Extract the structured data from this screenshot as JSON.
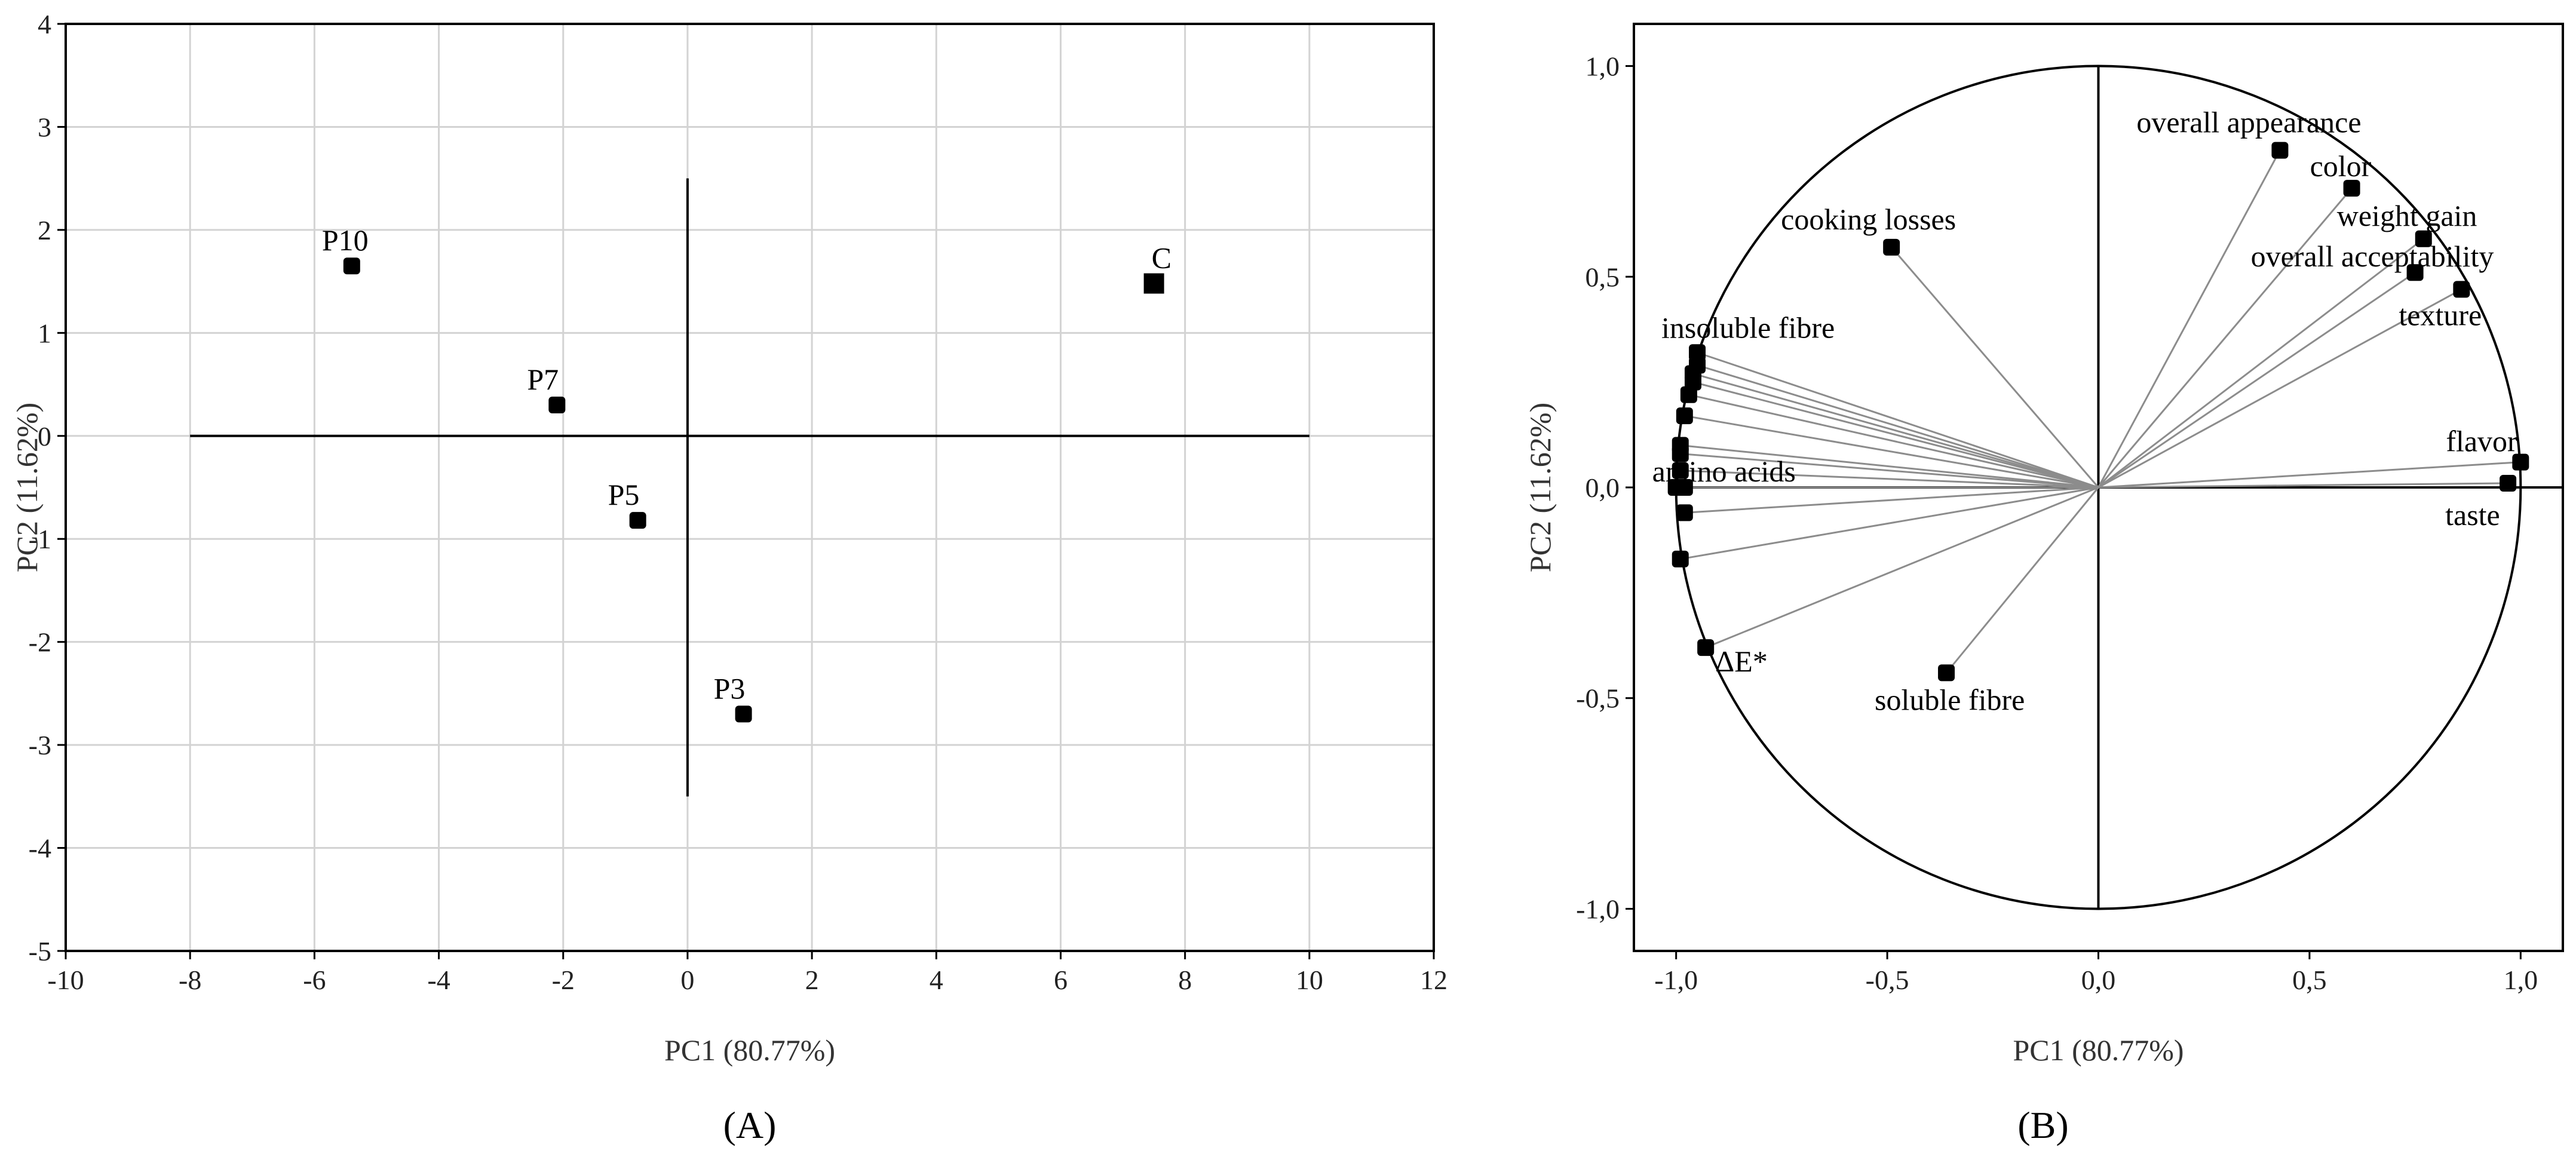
{
  "chart_data": [
    {
      "type": "scatter",
      "panel_label": "(A)",
      "xlabel": "PC1 (80.77%)",
      "ylabel": "PC2 (11.62%)",
      "xlim": [
        -10,
        12
      ],
      "ylim": [
        -5,
        4
      ],
      "xticks": [
        -10,
        -8,
        -6,
        -4,
        -2,
        0,
        2,
        4,
        6,
        8,
        10,
        12
      ],
      "yticks": [
        -5,
        -4,
        -3,
        -2,
        -1,
        0,
        1,
        2,
        3,
        4
      ],
      "grid": true,
      "reference_lines": {
        "horizontal": {
          "y": 0,
          "x_from": -8,
          "x_to": 10
        },
        "vertical": {
          "x": 0,
          "y_from": -3.5,
          "y_to": 2.5
        }
      },
      "points": [
        {
          "label": "P10",
          "x": -5.4,
          "y": 1.65,
          "marker": "square-rounded"
        },
        {
          "label": "P7",
          "x": -2.1,
          "y": 0.3,
          "marker": "square-rounded"
        },
        {
          "label": "P5",
          "x": -0.8,
          "y": -0.82,
          "marker": "square-rounded"
        },
        {
          "label": "P3",
          "x": 0.9,
          "y": -2.7,
          "marker": "square-rounded"
        },
        {
          "label": "C",
          "x": 7.5,
          "y": 1.48,
          "marker": "square"
        }
      ]
    },
    {
      "type": "scatter",
      "panel_label": "(B)",
      "xlabel": "PC1 (80.77%)",
      "ylabel": "PC2  (11.62%)",
      "xlim": [
        -1.1,
        1.1
      ],
      "ylim": [
        -1.1,
        1.1
      ],
      "xticks": [
        "-1,0",
        "-0,5",
        "0,0",
        "0,5",
        "1,0"
      ],
      "yticks": [
        "-1,0",
        "-0,5",
        "0,0",
        "0,5",
        "1,0"
      ],
      "grid": false,
      "unit_circle": true,
      "vectors": [
        {
          "label": "overall appearance",
          "x": 0.43,
          "y": 0.8
        },
        {
          "label": "color",
          "x": 0.6,
          "y": 0.71
        },
        {
          "label": "weight gain",
          "x": 0.77,
          "y": 0.59
        },
        {
          "label": "overall acceptability",
          "x": 0.75,
          "y": 0.51
        },
        {
          "label": "texture",
          "x": 0.86,
          "y": 0.47
        },
        {
          "label": "flavor",
          "x": 1.0,
          "y": 0.06
        },
        {
          "label": "taste",
          "x": 0.97,
          "y": 0.01
        },
        {
          "label": "cooking losses",
          "x": -0.49,
          "y": 0.57
        },
        {
          "label": "soluble fibre",
          "x": -0.36,
          "y": -0.44
        },
        {
          "label": "ΔE*",
          "x": -0.93,
          "y": -0.38
        },
        {
          "label": "insoluble fibre",
          "x": -0.95,
          "y": 0.32
        },
        {
          "label": "",
          "x": -0.95,
          "y": 0.29
        },
        {
          "label": "",
          "x": -0.96,
          "y": 0.27
        },
        {
          "label": "",
          "x": -0.96,
          "y": 0.25
        },
        {
          "label": "",
          "x": -0.97,
          "y": 0.22
        },
        {
          "label": "",
          "x": -0.98,
          "y": 0.17
        },
        {
          "label": "",
          "x": -0.99,
          "y": 0.1
        },
        {
          "label": "",
          "x": -0.99,
          "y": 0.08
        },
        {
          "label": "",
          "x": -0.99,
          "y": 0.04
        },
        {
          "label": "amino acids",
          "x": -1.0,
          "y": 0.0
        },
        {
          "label": "",
          "x": -0.98,
          "y": 0.0
        },
        {
          "label": "",
          "x": -0.98,
          "y": -0.06
        },
        {
          "label": "",
          "x": -0.99,
          "y": -0.17
        }
      ]
    }
  ]
}
